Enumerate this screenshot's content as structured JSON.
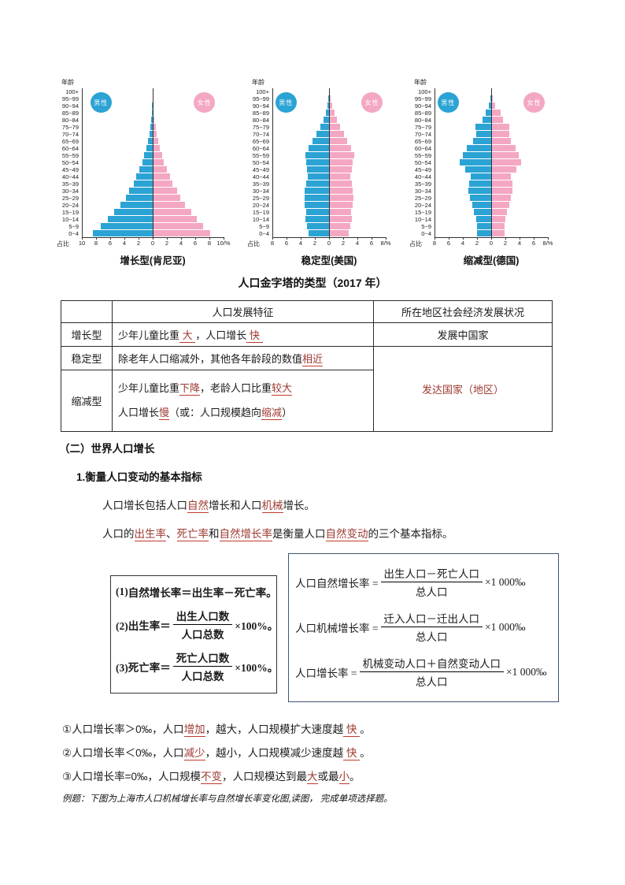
{
  "colors": {
    "male": "#2BA3D4",
    "female": "#F4A7C3",
    "axis": "#333333",
    "highlight_text": "#9C3931",
    "highlight_underline": "#C0392B"
  },
  "charts_caption": "人口金字塔的类型（2017 年）",
  "chart_data": [
    {
      "type": "pyramid-bar",
      "title": "增长型(肯尼亚)",
      "age_axis_label": "年龄",
      "pct_axis_label": "占比",
      "male_label": "男性",
      "female_label": "女性",
      "male_color": "#2BA3D4",
      "female_color": "#F4A7C3",
      "x_max": 10,
      "x_unit": "%",
      "categories": [
        "0~4",
        "5~9",
        "10~14",
        "15~19",
        "20~24",
        "25~29",
        "30~34",
        "35~39",
        "40~44",
        "45~49",
        "50~54",
        "55~59",
        "60~64",
        "65~69",
        "70~74",
        "75~79",
        "80~84",
        "85~89",
        "90~94",
        "95~99",
        "100+"
      ],
      "male": [
        8.4,
        7.3,
        6.3,
        5.4,
        4.6,
        3.8,
        3.3,
        2.7,
        2.3,
        1.9,
        1.5,
        1.2,
        0.9,
        0.7,
        0.5,
        0.3,
        0.2,
        0.1,
        0.06,
        0.03,
        0.02
      ],
      "female": [
        8.1,
        7.1,
        6.2,
        5.4,
        4.6,
        3.9,
        3.4,
        2.8,
        2.4,
        2.0,
        1.6,
        1.3,
        1.0,
        0.8,
        0.6,
        0.4,
        0.25,
        0.15,
        0.08,
        0.04,
        0.02
      ]
    },
    {
      "type": "pyramid-bar",
      "title": "稳定型(美国)",
      "age_axis_label": "年龄",
      "pct_axis_label": "占比",
      "male_label": "男性",
      "female_label": "女性",
      "male_color": "#2BA3D4",
      "female_color": "#F4A7C3",
      "x_max": 8,
      "x_unit": "%",
      "categories": [
        "0~4",
        "5~9",
        "10~14",
        "15~19",
        "20~24",
        "25~29",
        "30~34",
        "35~39",
        "40~44",
        "45~49",
        "50~54",
        "55~59",
        "60~64",
        "65~69",
        "70~74",
        "75~79",
        "80~84",
        "85~89",
        "90~94",
        "95~99",
        "100+"
      ],
      "male": [
        2.9,
        3.1,
        3.3,
        3.2,
        3.4,
        3.5,
        3.4,
        3.2,
        3.0,
        3.1,
        3.2,
        3.3,
        2.9,
        2.3,
        1.8,
        1.2,
        0.8,
        0.5,
        0.25,
        0.1,
        0.03
      ],
      "female": [
        2.8,
        3.0,
        3.2,
        3.1,
        3.3,
        3.4,
        3.3,
        3.2,
        3.0,
        3.2,
        3.3,
        3.5,
        3.1,
        2.6,
        2.1,
        1.5,
        1.1,
        0.8,
        0.45,
        0.2,
        0.06
      ]
    },
    {
      "type": "pyramid-bar",
      "title": "缩减型(德国)",
      "age_axis_label": "年龄",
      "pct_axis_label": "占比",
      "male_label": "男性",
      "female_label": "女性",
      "male_color": "#2BA3D4",
      "female_color": "#F4A7C3",
      "x_max": 8,
      "x_unit": "%",
      "categories": [
        "0~4",
        "5~9",
        "10~14",
        "15~19",
        "20~24",
        "25~29",
        "30~34",
        "35~39",
        "40~44",
        "45~49",
        "50~54",
        "55~59",
        "60~64",
        "65~69",
        "70~74",
        "75~79",
        "80~84",
        "85~89",
        "90~94",
        "95~99",
        "100+"
      ],
      "male": [
        2.0,
        2.0,
        2.1,
        2.4,
        2.7,
        3.0,
        3.2,
        3.1,
        2.9,
        3.7,
        4.4,
        4.0,
        3.4,
        2.6,
        2.1,
        2.2,
        1.2,
        0.8,
        0.3,
        0.1,
        0.03
      ],
      "female": [
        1.9,
        1.9,
        2.0,
        2.2,
        2.5,
        2.8,
        3.0,
        3.0,
        2.8,
        3.6,
        4.2,
        3.9,
        3.4,
        2.8,
        2.5,
        2.6,
        1.7,
        1.3,
        0.6,
        0.2,
        0.06
      ]
    }
  ],
  "table": {
    "headers": [
      "",
      "人口发展特征",
      "所在地区社会经济发展状况"
    ],
    "rows": [
      {
        "type": "增长型",
        "feature": [
          {
            "t": "少年儿童比重"
          },
          {
            "t": " 大 ",
            "u": true
          },
          {
            "t": "，人口增长"
          },
          {
            "t": " 快 ",
            "u": true
          }
        ],
        "status": "发展中国家"
      },
      {
        "type": "稳定型",
        "feature": [
          {
            "t": "除老年人口缩减外，其他各年龄段的数值"
          },
          {
            "t": "相近",
            "u": true
          }
        ]
      },
      {
        "type": "缩减型",
        "feature_lines": [
          [
            {
              "t": "少年儿童比重"
            },
            {
              "t": "下降",
              "u": true
            },
            {
              "t": "，老龄人口比重"
            },
            {
              "t": "较大",
              "u": true
            }
          ],
          [
            {
              "t": "人口增长"
            },
            {
              "t": "慢",
              "u": true
            },
            {
              "t": "（或：人口规模趋向"
            },
            {
              "t": "缩减",
              "u": true
            },
            {
              "t": "）"
            }
          ]
        ]
      }
    ],
    "merged_status": [
      {
        "t": "发达国家（地区）",
        "r": true
      }
    ]
  },
  "sections": {
    "h1": "（二）世界人口增长",
    "h2": "1.衡量人口变动的基本指标",
    "p1": [
      {
        "t": "人口增长包括人口"
      },
      {
        "t": "自然",
        "u": true
      },
      {
        "t": "增长和人口"
      },
      {
        "t": "机械",
        "u": true
      },
      {
        "t": "增长。"
      }
    ],
    "p2": [
      {
        "t": "人口的"
      },
      {
        "t": "出生率",
        "u": true
      },
      {
        "t": "、"
      },
      {
        "t": "死亡率",
        "u": true
      },
      {
        "t": "和"
      },
      {
        "t": "自然增长率",
        "u": true
      },
      {
        "t": "是衡量人口"
      },
      {
        "t": "自然变动",
        "u": true
      },
      {
        "t": "的三个基本指标。"
      }
    ]
  },
  "formula_box_left": {
    "lines": [
      {
        "prefix": "(1)",
        "text": "自然增长率＝出生率－死亡率。"
      },
      {
        "prefix": "(2)",
        "lhs": "出生率＝",
        "num": "出生人口数",
        "den": "人口总数",
        "suffix": "×100%。"
      },
      {
        "prefix": "(3)",
        "lhs": "死亡率＝",
        "num": "死亡人口数",
        "den": "人口总数",
        "suffix": "×100%。"
      }
    ]
  },
  "formula_box_right": {
    "lines": [
      {
        "lhs": "人口自然增长率 = ",
        "num": "出生人口－死亡人口",
        "den": "总人口",
        "suffix": " ×1 000‰"
      },
      {
        "lhs": "人口机械增长率 = ",
        "num": "迁入人口－迁出人口",
        "den": "总人口",
        "suffix": " ×1 000‰"
      },
      {
        "lhs": "人口增长率 = ",
        "num": "机械变动人口＋自然变动人口",
        "den": "总人口",
        "suffix": " ×1 000‰"
      }
    ]
  },
  "notes": [
    [
      {
        "t": "①人口增长率＞0‰，人口"
      },
      {
        "t": "增加",
        "u": true
      },
      {
        "t": "，越大，人口规模扩大速度越"
      },
      {
        "t": " 快 ",
        "u": true
      },
      {
        "t": "。"
      }
    ],
    [
      {
        "t": "②人口增长率＜0‰，人口"
      },
      {
        "t": "减少",
        "u": true
      },
      {
        "t": "，越小，人口规模减少速度越"
      },
      {
        "t": " 快 ",
        "u": true
      },
      {
        "t": "。"
      }
    ],
    [
      {
        "t": "③人口增长率=0‰，人口规模"
      },
      {
        "t": "不变",
        "u": true
      },
      {
        "t": "，人口规模达到最"
      },
      {
        "t": "大",
        "u": true
      },
      {
        "t": "或最"
      },
      {
        "t": "小",
        "u": true
      },
      {
        "t": "。"
      }
    ]
  ],
  "example": "例题：下图为上海市人口机械增长率与自然增长率变化图,读图， 完成单项选择题。"
}
